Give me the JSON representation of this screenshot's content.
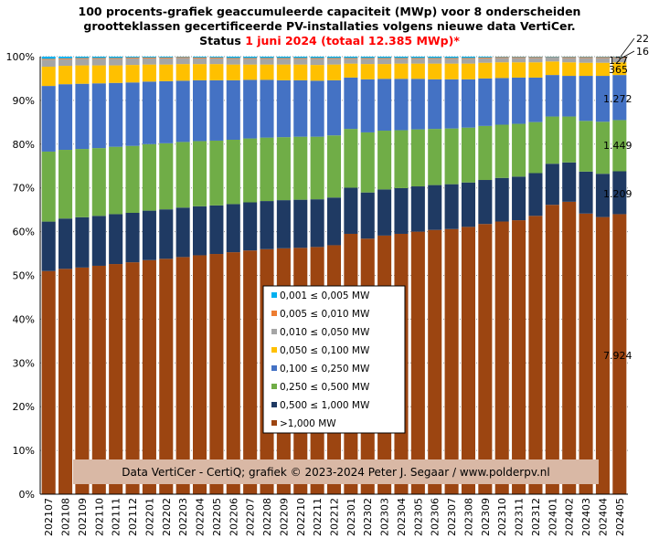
{
  "title": {
    "line1": "100 procents-grafiek geaccumuleerde capaciteit (MWp) voor 8 onderscheiden",
    "line2": "grootteklassen gecertificeerde PV-installaties volgens nieuwe data VertiCer.",
    "line3_prefix": "Status ",
    "line3_date": "1 juni 2024",
    "line3_total": "(totaal 12.385 MWp)*"
  },
  "chart_data": {
    "type": "bar",
    "stacked": "percent",
    "categories": [
      "202107",
      "202108",
      "202109",
      "202110",
      "202111",
      "202112",
      "202201",
      "202202",
      "202203",
      "202204",
      "202205",
      "202206",
      "202207",
      "202208",
      "202209",
      "202210",
      "202211",
      "202212",
      "202301",
      "202302",
      "202303",
      "202304",
      "202305",
      "202306",
      "202307",
      "202308",
      "202309",
      "202310",
      "202311",
      "202312",
      "202401",
      "202402",
      "202403",
      "202404",
      "202405"
    ],
    "yticks": [
      "0%",
      "10%",
      "20%",
      "30%",
      "40%",
      "50%",
      "60%",
      "70%",
      "80%",
      "90%",
      "100%"
    ],
    "ylim": [
      0,
      100
    ],
    "grid": "horizontal dotted",
    "legend_placement": "center",
    "series": [
      {
        "name": ">1,000 MW",
        "color": "#9c4511",
        "values": [
          51.0,
          51.5,
          51.8,
          52.2,
          52.6,
          53.0,
          53.5,
          53.8,
          54.2,
          54.6,
          54.9,
          55.3,
          55.7,
          56.0,
          56.2,
          56.3,
          56.5,
          56.9,
          59.8,
          58.7,
          59.4,
          59.8,
          60.3,
          60.7,
          60.9,
          61.4,
          62.0,
          62.5,
          62.8,
          63.8,
          66.2,
          66.9,
          64.2,
          63.4,
          64.0
        ]
      },
      {
        "name": "0,500 ≤  1,000 MW",
        "color": "#1f3a63",
        "values": [
          11.3,
          11.5,
          11.5,
          11.4,
          11.4,
          11.3,
          11.3,
          11.3,
          11.3,
          11.2,
          11.1,
          11.0,
          11.0,
          11.0,
          11.0,
          11.0,
          10.9,
          10.9,
          10.6,
          10.6,
          10.6,
          10.5,
          10.4,
          10.3,
          10.3,
          10.2,
          10.1,
          10.0,
          10.0,
          9.8,
          9.4,
          9.0,
          9.6,
          9.9,
          9.8
        ]
      },
      {
        "name": "0,250 ≤  0,500 MW",
        "color": "#70ad47",
        "values": [
          16.0,
          15.7,
          15.6,
          15.5,
          15.4,
          15.3,
          15.2,
          15.1,
          15.0,
          14.9,
          14.8,
          14.7,
          14.6,
          14.5,
          14.4,
          14.4,
          14.3,
          14.2,
          13.5,
          13.8,
          13.5,
          13.3,
          13.1,
          12.9,
          12.8,
          12.6,
          12.4,
          12.2,
          12.1,
          11.7,
          10.8,
          10.5,
          11.6,
          11.9,
          11.7
        ]
      },
      {
        "name": "0,100 ≤  0,250 MW",
        "color": "#4472c4",
        "values": [
          15.0,
          15.0,
          14.9,
          14.8,
          14.6,
          14.5,
          14.3,
          14.2,
          14.0,
          13.9,
          13.8,
          13.6,
          13.4,
          13.2,
          13.0,
          12.9,
          12.8,
          12.6,
          11.8,
          12.2,
          11.9,
          11.8,
          11.6,
          11.4,
          11.3,
          11.1,
          10.9,
          10.7,
          10.6,
          10.2,
          9.5,
          9.3,
          10.3,
          10.5,
          10.3
        ]
      },
      {
        "name": "0,050 ≤  0,100 MW",
        "color": "#ffc000",
        "values": [
          4.4,
          4.2,
          4.2,
          4.1,
          4.0,
          4.0,
          3.9,
          3.8,
          3.8,
          3.7,
          3.7,
          3.6,
          3.5,
          3.5,
          3.6,
          3.6,
          3.6,
          3.6,
          3.2,
          3.5,
          3.4,
          3.5,
          3.5,
          3.6,
          3.6,
          3.6,
          3.6,
          3.6,
          3.5,
          3.5,
          3.1,
          3.1,
          3.0,
          3.0,
          2.9
        ]
      },
      {
        "name": "0,010 ≤  0,050 MW",
        "color": "#a5a5a5",
        "values": [
          1.6,
          1.5,
          1.5,
          1.5,
          1.5,
          1.5,
          1.4,
          1.4,
          1.4,
          1.3,
          1.3,
          1.3,
          1.3,
          1.3,
          1.3,
          1.3,
          1.4,
          1.3,
          1.1,
          1.2,
          1.2,
          1.1,
          1.1,
          1.1,
          1.1,
          1.1,
          1.0,
          1.0,
          1.0,
          1.0,
          0.9,
          1.0,
          1.1,
          1.1,
          1.0
        ]
      },
      {
        "name": "0,005 ≤  0,010 MW",
        "color": "#ed7d31",
        "values": [
          0.2,
          0.2,
          0.2,
          0.2,
          0.2,
          0.2,
          0.2,
          0.2,
          0.2,
          0.2,
          0.2,
          0.2,
          0.2,
          0.2,
          0.2,
          0.2,
          0.2,
          0.2,
          0.2,
          0.2,
          0.2,
          0.2,
          0.2,
          0.2,
          0.2,
          0.2,
          0.2,
          0.2,
          0.2,
          0.2,
          0.1,
          0.2,
          0.2,
          0.2,
          0.2
        ]
      },
      {
        "name": "0,001 ≤  0,005 MW",
        "color": "#00b0f0",
        "values": [
          0.5,
          0.4,
          0.3,
          0.3,
          0.3,
          0.2,
          0.2,
          0.2,
          0.1,
          0.2,
          0.2,
          0.3,
          0.3,
          0.3,
          0.3,
          0.3,
          0.3,
          0.3,
          0.3,
          0.3,
          0.3,
          0.3,
          0.3,
          0.3,
          0.3,
          0.3,
          0.2,
          0.1,
          0.1,
          0.1,
          0.1,
          0.1,
          0.1,
          0.1,
          0.1
        ]
      }
    ],
    "annotations": [
      "22",
      "16",
      "127",
      "365",
      "1.272",
      "1.449",
      "1.209",
      "7.924"
    ],
    "annotation_color": "#000000"
  },
  "watermark": "Data VertiCer - CertiQ; grafiek © 2023-2024 Peter J. Segaar / www.polderpv.nl"
}
